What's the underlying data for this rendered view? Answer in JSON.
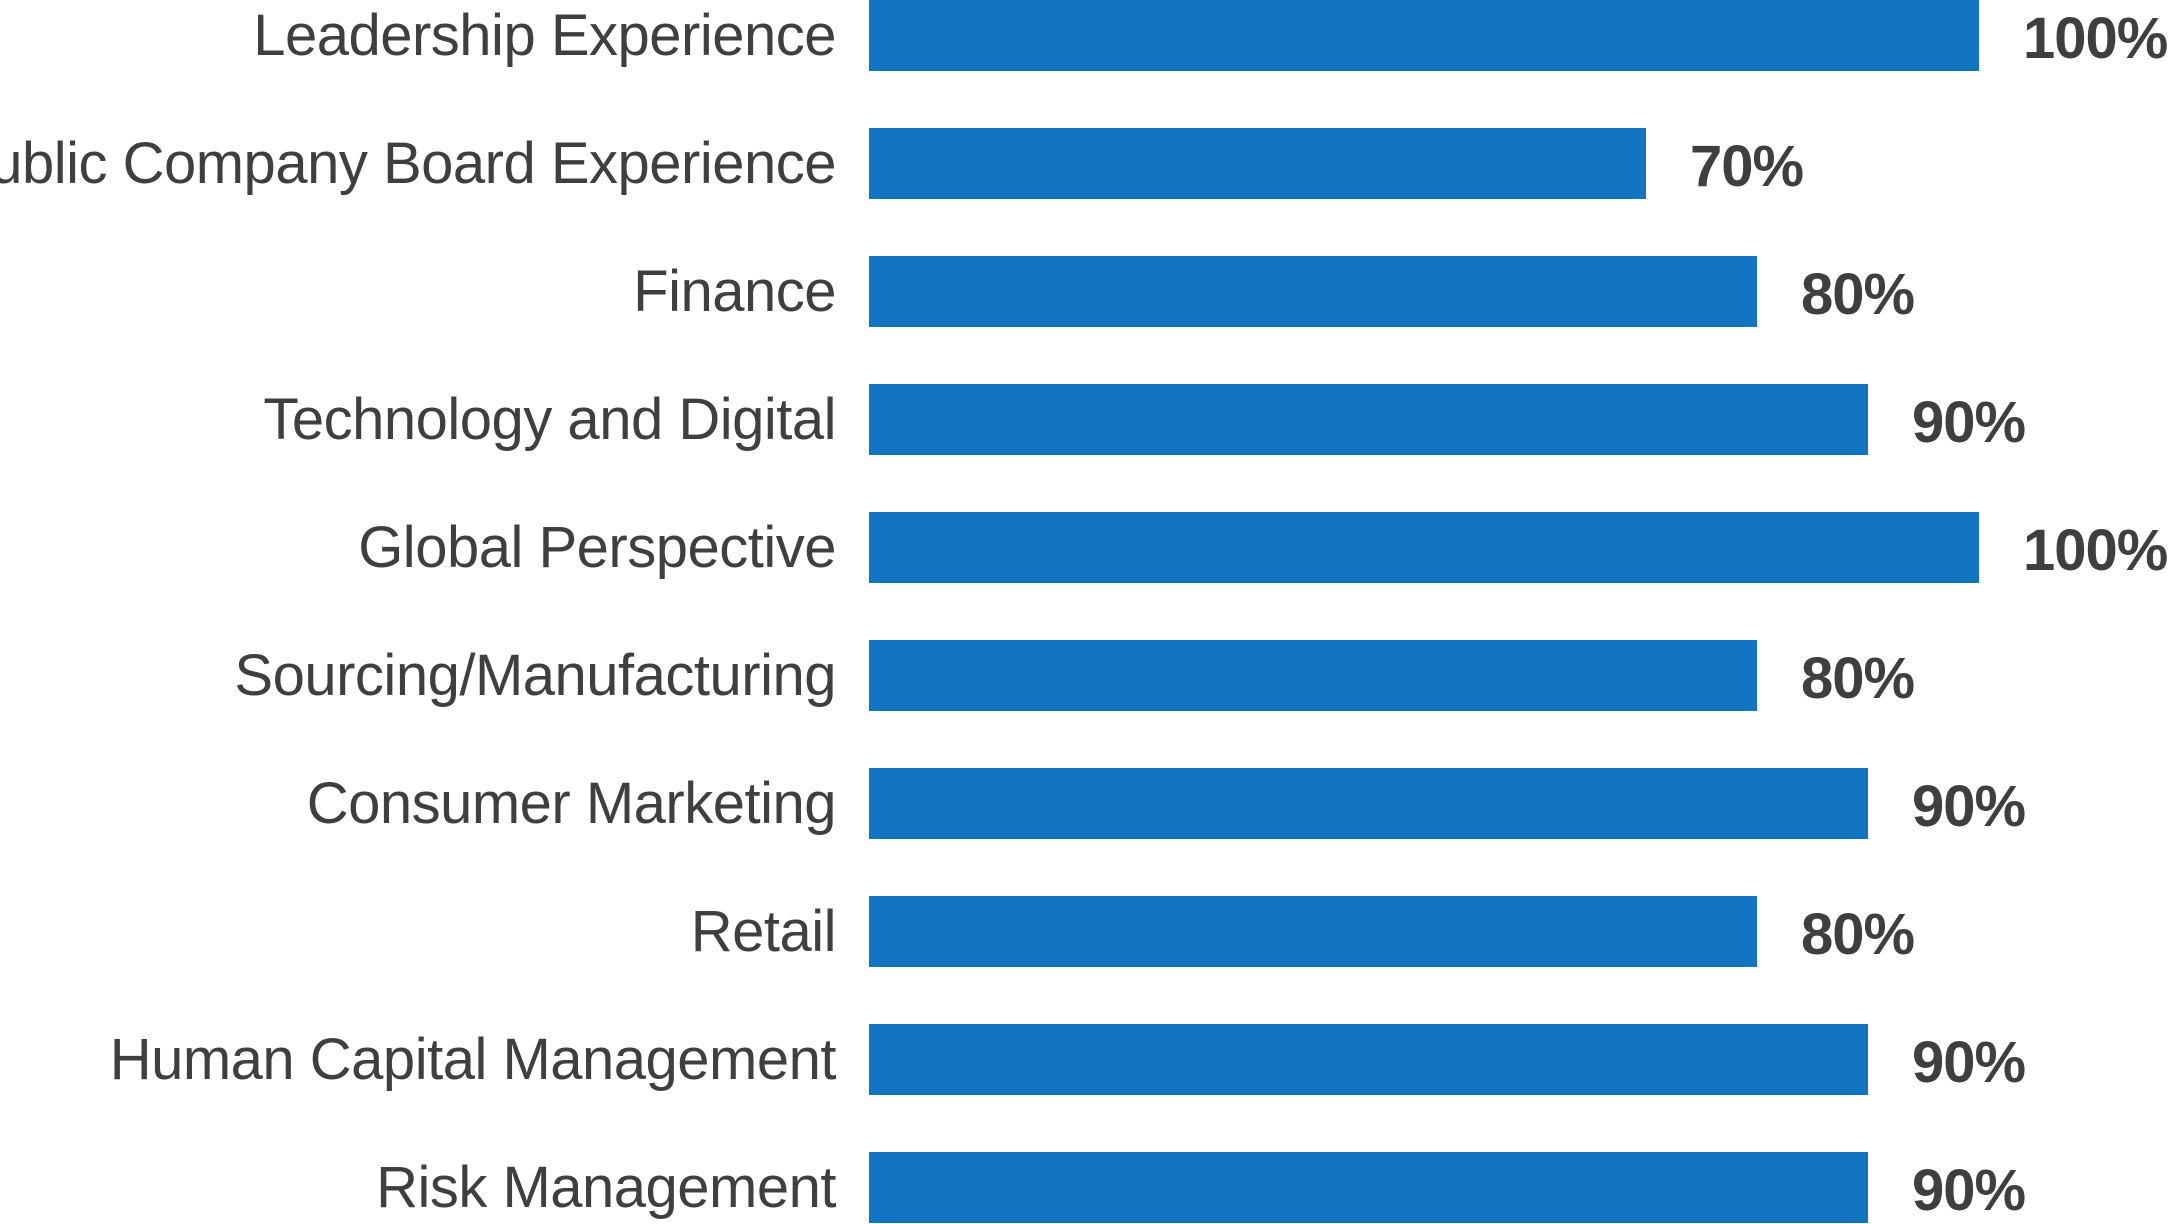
{
  "chart_data": {
    "type": "bar",
    "orientation": "horizontal",
    "title": "",
    "xlabel": "",
    "ylabel": "",
    "xlim": [
      0,
      100
    ],
    "bar_color": "#1275c1",
    "label_color": "#3f3f3f",
    "categories": [
      "Leadership Experience",
      "Public Company Board Experience",
      "Finance",
      "Technology and Digital",
      "Global Perspective",
      "Sourcing/Manufacturing",
      "Consumer Marketing",
      "Retail",
      "Human Capital Management",
      "Risk Management"
    ],
    "values": [
      100,
      70,
      80,
      90,
      100,
      80,
      90,
      80,
      90,
      90
    ],
    "value_labels": [
      "100%",
      "70%",
      "80%",
      "90%",
      "100%",
      "80%",
      "90%",
      "80%",
      "90%",
      "90%"
    ]
  }
}
